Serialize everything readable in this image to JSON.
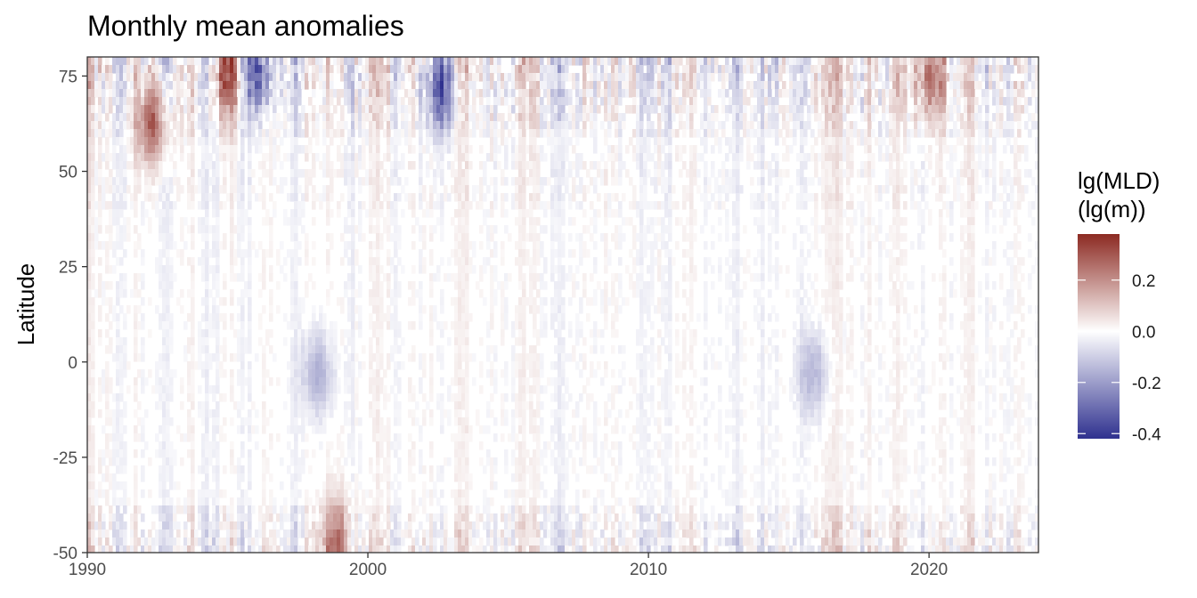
{
  "chart_data": {
    "type": "heatmap",
    "title": "Monthly mean anomalies",
    "xlabel": "",
    "ylabel": "Latitude",
    "x_range": [
      1990,
      2023.9
    ],
    "y_range": [
      -50,
      80
    ],
    "x_ticks": [
      1990,
      2000,
      2010,
      2020
    ],
    "y_ticks": [
      75,
      50,
      25,
      0,
      -25,
      -50
    ],
    "grid": false,
    "legend": {
      "title_lines": [
        "lg(MLD)",
        "(lg(m))"
      ],
      "placement": "right",
      "range": [
        -0.42,
        0.38
      ],
      "ticks": [
        0.2,
        0.0,
        -0.2,
        -0.4
      ],
      "tick_labels": [
        "0.2",
        "0.0",
        "-0.2",
        "-0.4"
      ]
    },
    "colorscale": {
      "low": "#2f318f",
      "mid": "#ffffff",
      "high": "#8c2a22"
    },
    "features": [
      {
        "x": 1998.2,
        "y": -3,
        "value": -0.16
      },
      {
        "x": 2015.9,
        "y": -3,
        "value": -0.14
      },
      {
        "x": 1995.0,
        "y": 75,
        "value": 0.3
      },
      {
        "x": 1992.3,
        "y": 63,
        "value": 0.3
      },
      {
        "x": 2020.0,
        "y": 75,
        "value": 0.25
      },
      {
        "x": 2002.6,
        "y": 72,
        "value": -0.3
      },
      {
        "x": 1996.1,
        "y": 76,
        "value": -0.3
      },
      {
        "x": 1998.9,
        "y": -47,
        "value": 0.25
      }
    ]
  }
}
